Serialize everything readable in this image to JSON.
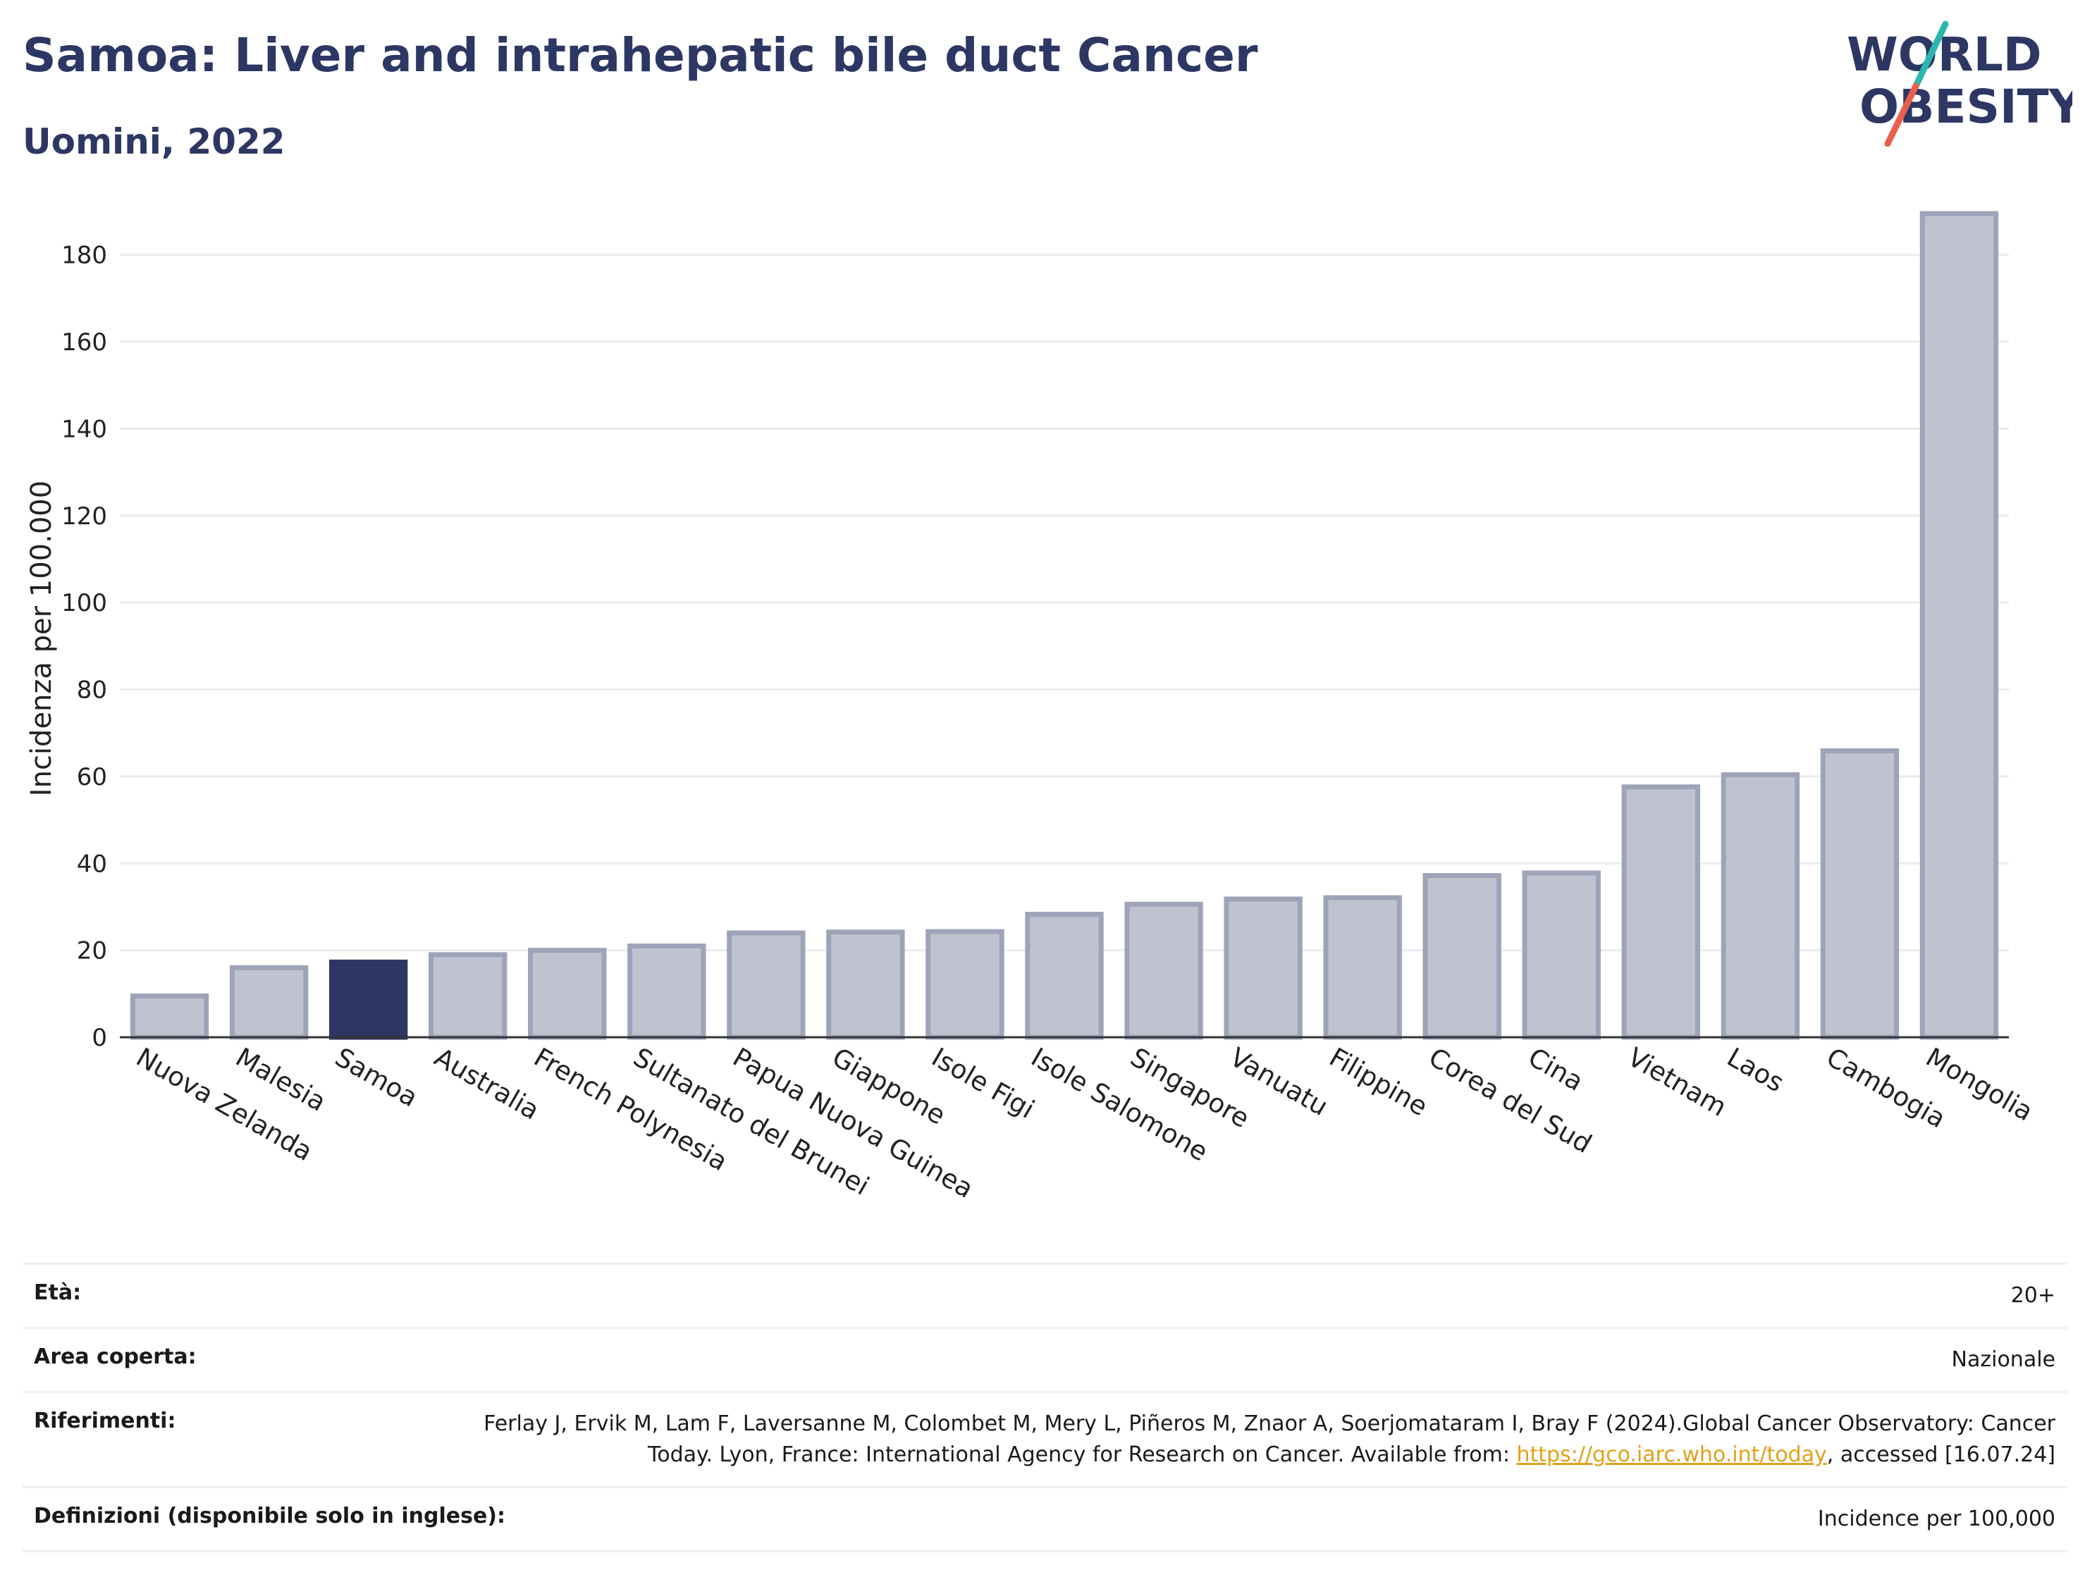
{
  "header": {
    "title": "Samoa: Liver and intrahepatic bile duct Cancer",
    "subtitle": "Uomini, 2022"
  },
  "logo": {
    "line1": "WORLD",
    "line2": "OBESITY",
    "colors": {
      "text": "#2c3763",
      "slash_top": "#2bb6b0",
      "slash_bottom": "#e8604c"
    }
  },
  "colors": {
    "highlight_bar": "#2c3763",
    "other_bar_fill": "#bfc3cf",
    "other_bar_stroke": "#9ea4b8",
    "grid": "#e9ebef",
    "axis": "#333333",
    "link": "#e0a21b"
  },
  "chart_data": {
    "type": "bar",
    "title": "Samoa: Liver and intrahepatic bile duct Cancer",
    "subtitle": "Uomini, 2022",
    "xlabel": "",
    "ylabel": "Incidenza per 100.000",
    "ylim": [
      0,
      190
    ],
    "yticks": [
      0,
      20,
      40,
      60,
      80,
      100,
      120,
      140,
      160,
      180
    ],
    "grid": true,
    "highlight": "Samoa",
    "categories": [
      "Nuova Zelanda",
      "Malesia",
      "Samoa",
      "Australia",
      "French Polynesia",
      "Sultanato del Brunei",
      "Papua Nuova Guinea",
      "Giappone",
      "Isole Figi",
      "Isole Salomone",
      "Singapore",
      "Vanuatu",
      "Filippine",
      "Corea del Sud",
      "Cina",
      "Vietnam",
      "Laos",
      "Cambogia",
      "Mongolia"
    ],
    "values": [
      9.5,
      16,
      17.3,
      19,
      20,
      21,
      24,
      24.2,
      24.3,
      28.3,
      30.6,
      31.8,
      32.1,
      37.2,
      37.8,
      57.6,
      60.4,
      65.9,
      189.5
    ]
  },
  "info": {
    "rows": [
      {
        "key": "Età:",
        "value": "20+"
      },
      {
        "key": "Area coperta:",
        "value": "Nazionale"
      },
      {
        "key": "Riferimenti:",
        "value_before": "Ferlay J, Ervik M, Lam F, Laversanne M, Colombet M, Mery L, Piñeros M, Znaor A, Soerjomataram I, Bray F (2024).Global Cancer Observatory: Cancer Today. Lyon, France: International Agency for Research on Cancer. Available from: ",
        "link": "https://gco.iarc.who.int/today",
        "value_after": ", accessed [16.07.24]"
      },
      {
        "key": "Definizioni (disponibile solo in inglese):",
        "value": "Incidence per 100,000"
      }
    ]
  }
}
